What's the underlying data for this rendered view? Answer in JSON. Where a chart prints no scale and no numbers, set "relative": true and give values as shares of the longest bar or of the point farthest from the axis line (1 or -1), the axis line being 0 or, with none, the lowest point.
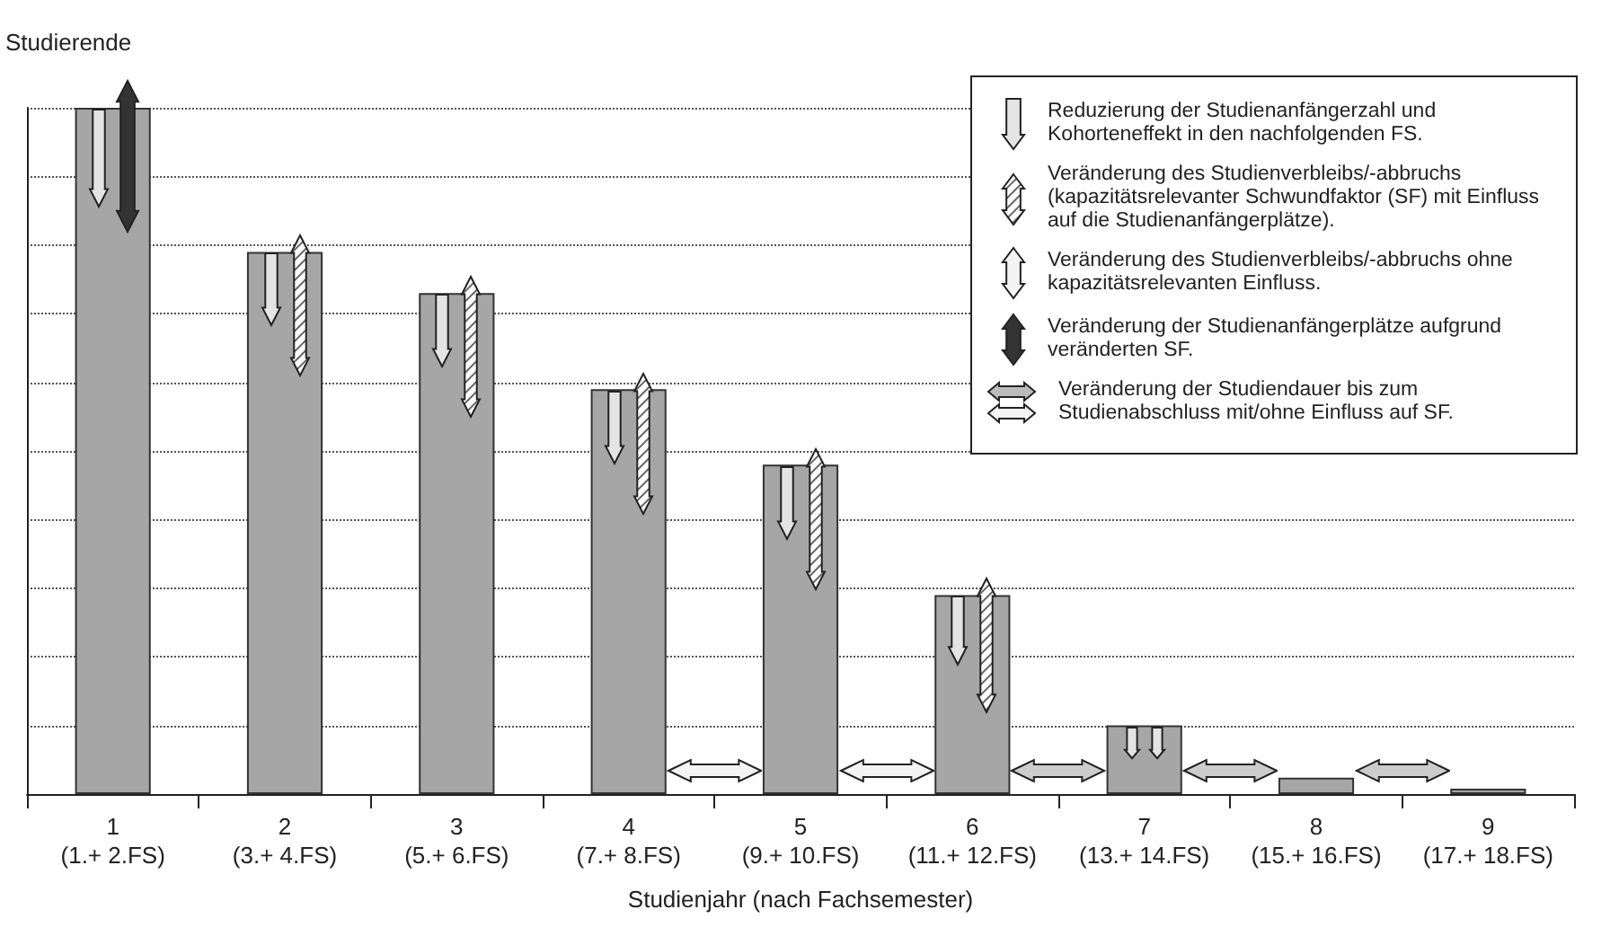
{
  "chart_data": {
    "type": "bar",
    "relative": true,
    "xlabel": "Studienjahr (nach Fachsemester)",
    "ylabel": "Studierende",
    "categories": [
      "1\n(1.+ 2.FS)",
      "2\n(3.+ 4.FS)",
      "3\n(5.+ 6.FS)",
      "4\n(7.+ 8.FS)",
      "5\n(9.+ 10.FS)",
      "6\n(11.+ 12.FS)",
      "7\n(13.+ 14.FS)",
      "8\n(15.+ 16.FS)",
      "9\n(17.+ 18.FS)"
    ],
    "values": [
      1,
      0.79,
      0.73,
      0.59,
      0.48,
      0.29,
      0.1,
      0.024,
      0.008
    ],
    "color": "#a6a6a6",
    "grid": "y",
    "annotations": [
      "Reduzierung der Studienanfängerzahl und Kohorteneffekt in den nachfolgenden FS.",
      "Veränderung des Studienverbleibs/-abbruchs (kapazitätsrelevanter Schwundfaktor (SF) mit Einfluss auf die Studienanfängerplätze).",
      "Veränderung des Studienverbleibs/-abbruchs ohne kapazitätsrelevanten Einfluss.",
      "Veränderung der Studienanfängerplätze aufgrund veränderten SF.",
      "Veränderung der Studiendauer bis zum Studienabschluss mit/ohne Einfluss auf SF."
    ]
  }
}
